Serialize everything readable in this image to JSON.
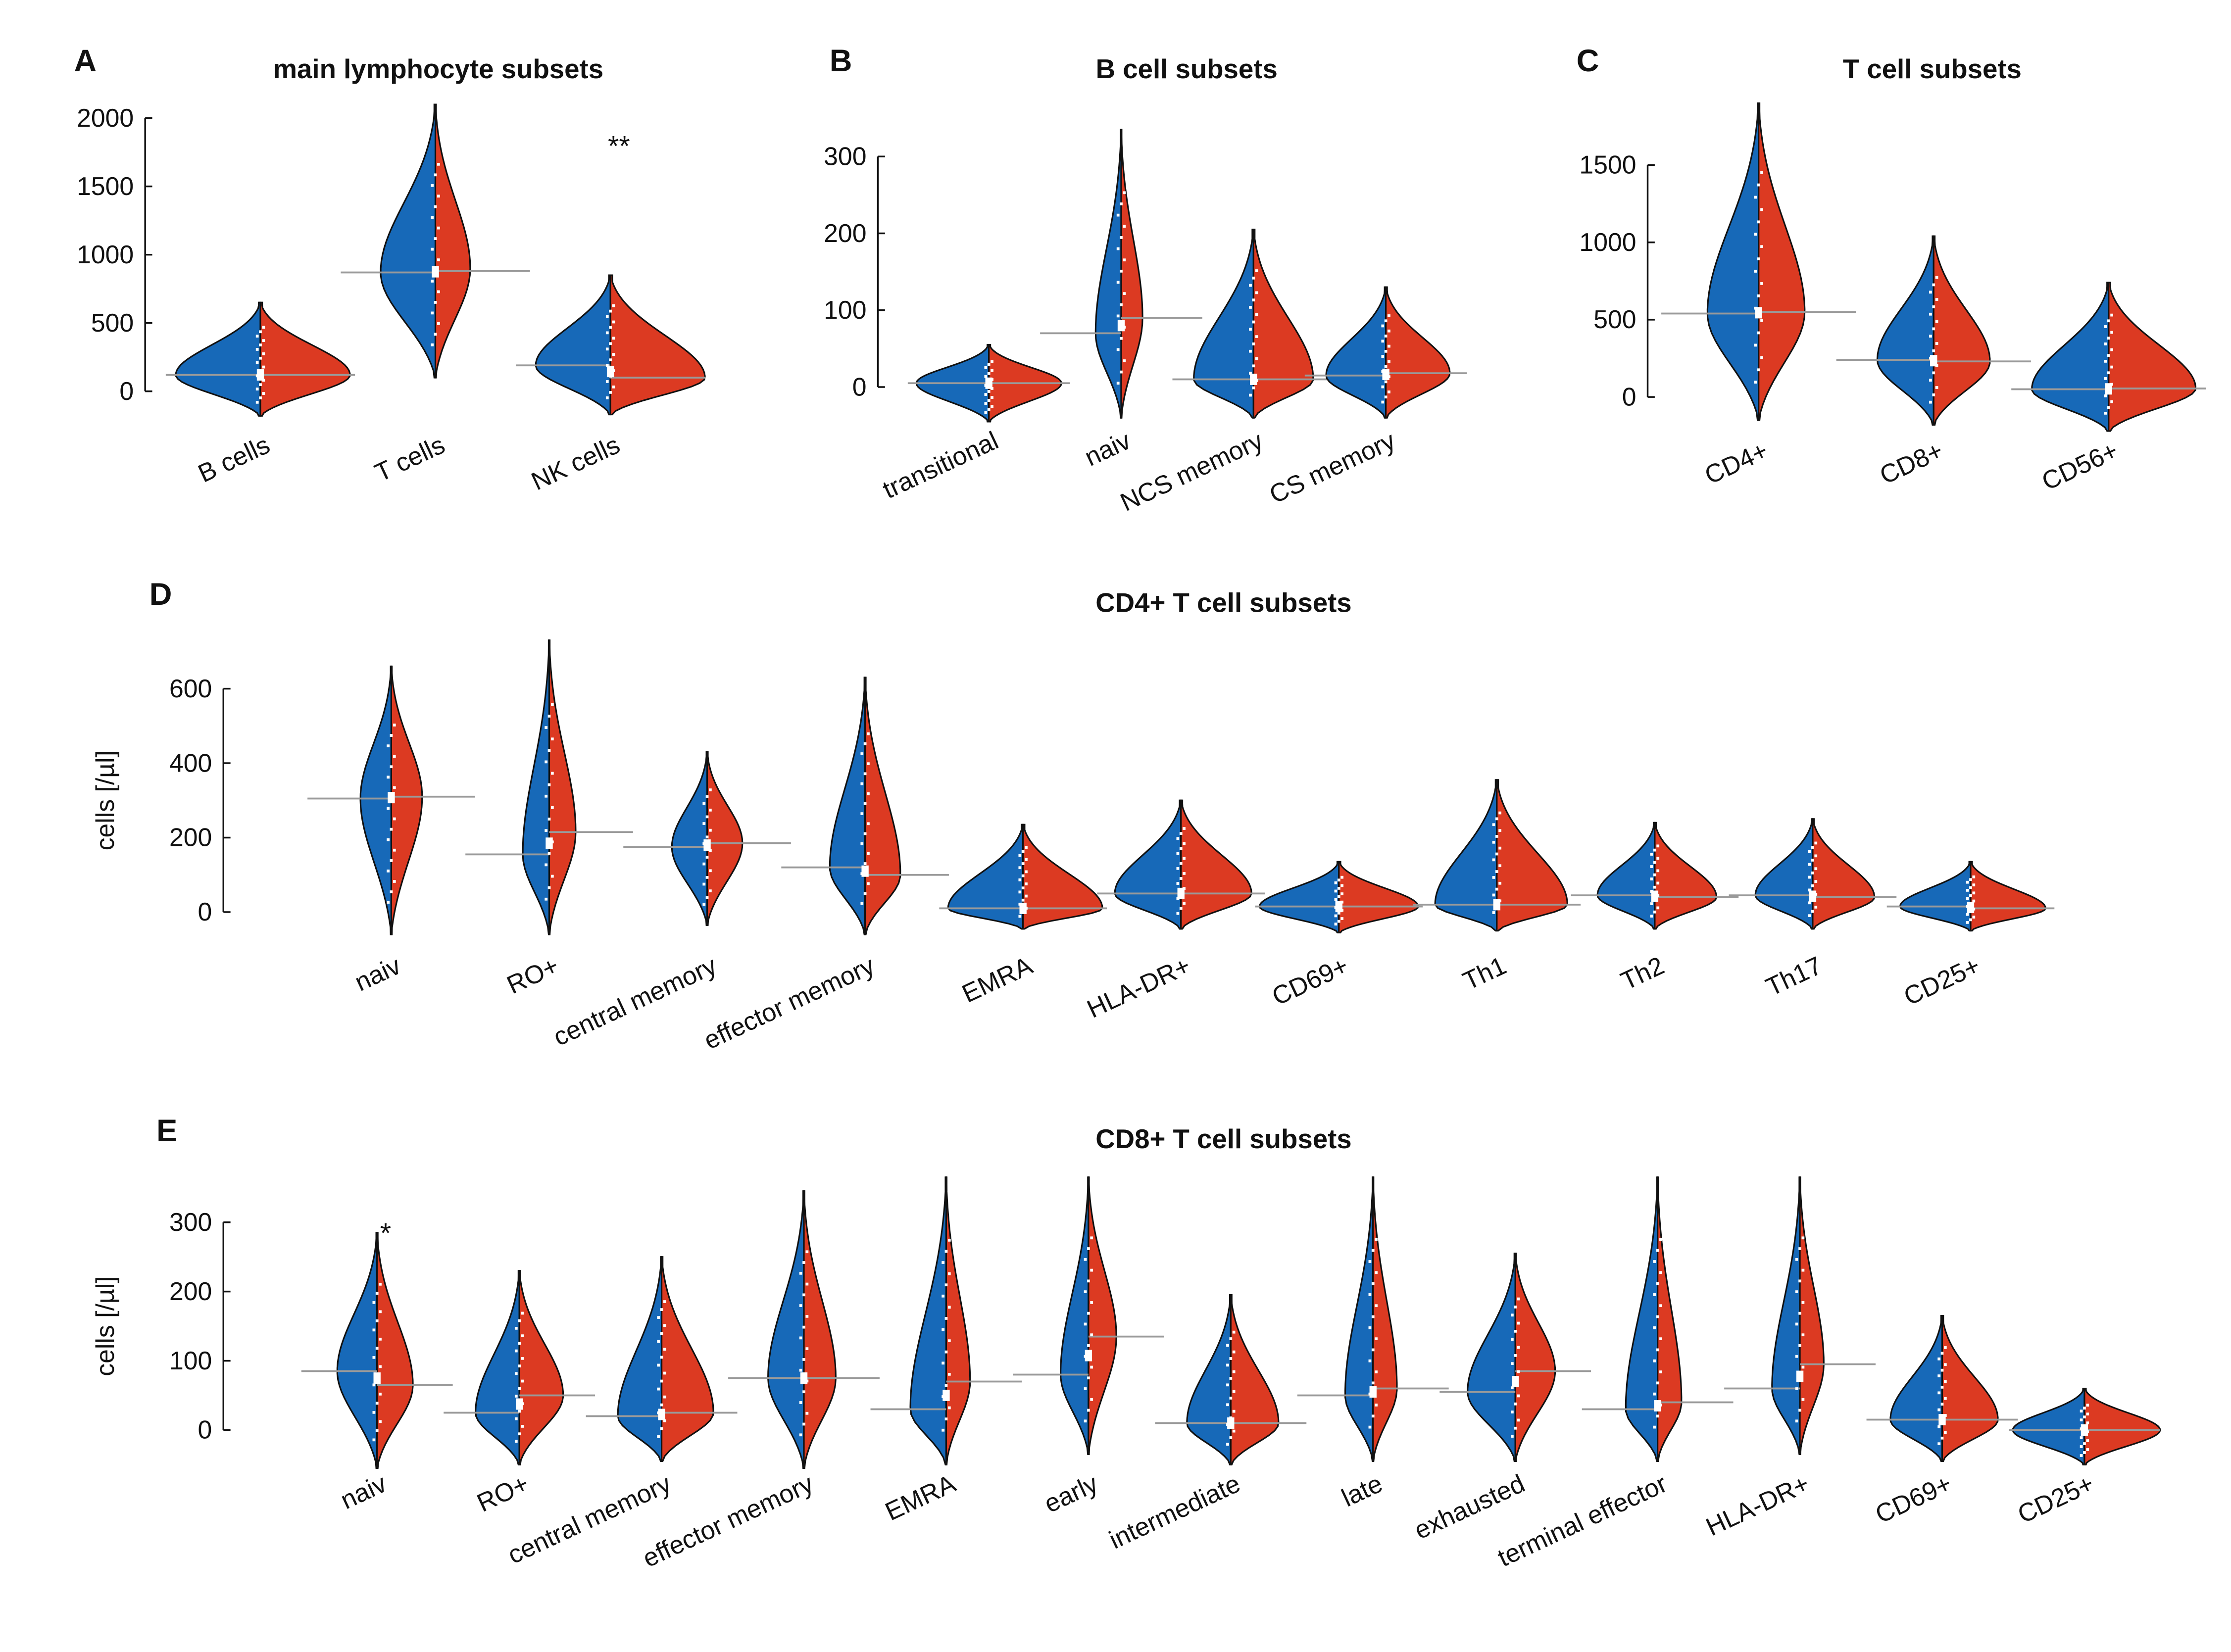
{
  "colors": {
    "left": "#1769b8",
    "right": "#dc3a22",
    "outline": "#111111",
    "median_line": "#9a9a9a"
  },
  "chart_data": [
    {
      "id": "A",
      "panel_label": "A",
      "type": "violin",
      "title": "main lymphocyte subsets",
      "ylabel": "",
      "ylim": [
        0,
        2000
      ],
      "yticks": [
        0,
        500,
        1000,
        1500,
        2000
      ],
      "categories": [
        "B cells",
        "T cells",
        "NK cells"
      ],
      "annotations": [
        {
          "category": "NK cells",
          "text": "**",
          "y": 1850
        }
      ],
      "violins": [
        {
          "min": -180,
          "max": 650,
          "left_median": 120,
          "right_median": 120,
          "left_mode": 120,
          "right_mode": 120,
          "left_width": 0.85,
          "right_width": 0.9
        },
        {
          "min": 100,
          "max": 2100,
          "left_median": 870,
          "right_median": 880,
          "left_mode": 870,
          "right_mode": 900,
          "left_width": 0.55,
          "right_width": 0.35
        },
        {
          "min": -170,
          "max": 850,
          "left_median": 190,
          "right_median": 100,
          "left_mode": 190,
          "right_mode": 100,
          "left_width": 0.75,
          "right_width": 0.95
        }
      ]
    },
    {
      "id": "B",
      "panel_label": "B",
      "type": "violin",
      "title": "B cell subsets",
      "ylabel": "",
      "ylim": [
        0,
        300
      ],
      "yticks": [
        0,
        100,
        200,
        300
      ],
      "categories": [
        "transitional",
        "naiv",
        "NCS memory",
        "CS memory"
      ],
      "violins": [
        {
          "min": -45,
          "max": 55,
          "left_median": 5,
          "right_median": 5,
          "left_mode": 5,
          "right_mode": 5,
          "left_width": 0.85,
          "right_width": 0.85
        },
        {
          "min": -40,
          "max": 335,
          "left_median": 70,
          "right_median": 90,
          "left_mode": 70,
          "right_mode": 90,
          "left_width": 0.3,
          "right_width": 0.25
        },
        {
          "min": -40,
          "max": 205,
          "left_median": 10,
          "right_median": 10,
          "left_mode": 10,
          "right_mode": 10,
          "left_width": 0.7,
          "right_width": 0.7
        },
        {
          "min": -40,
          "max": 130,
          "left_median": 15,
          "right_median": 18,
          "left_mode": 15,
          "right_mode": 18,
          "left_width": 0.7,
          "right_width": 0.75
        }
      ]
    },
    {
      "id": "C",
      "panel_label": "C",
      "type": "violin",
      "title": "T cell subsets",
      "ylabel": "",
      "ylim": [
        0,
        1500
      ],
      "yticks": [
        0,
        500,
        1000,
        1500
      ],
      "categories": [
        "CD4+",
        "CD8+",
        "CD56+"
      ],
      "violins": [
        {
          "min": -150,
          "max": 1900,
          "left_median": 540,
          "right_median": 550,
          "left_mode": 540,
          "right_mode": 550,
          "left_width": 0.5,
          "right_width": 0.45
        },
        {
          "min": -180,
          "max": 1040,
          "left_median": 240,
          "right_median": 230,
          "left_mode": 240,
          "right_mode": 230,
          "left_width": 0.55,
          "right_width": 0.55
        },
        {
          "min": -220,
          "max": 740,
          "left_median": 50,
          "right_median": 55,
          "left_mode": 50,
          "right_mode": 55,
          "left_width": 0.75,
          "right_width": 0.85
        }
      ]
    },
    {
      "id": "D",
      "panel_label": "D",
      "type": "violin",
      "title": "CD4+ T cell subsets",
      "ylabel": "cells [/µl]",
      "ylim": [
        0,
        600
      ],
      "yticks": [
        0,
        200,
        400,
        600
      ],
      "categories": [
        "naiv",
        "RO+",
        "central memory",
        "effector memory",
        "EMRA",
        "HLA-DR+",
        "CD69+",
        "Th1",
        "Th2",
        "Th17",
        "CD25+"
      ],
      "violins": [
        {
          "min": -60,
          "max": 660,
          "left_median": 305,
          "right_median": 310,
          "left_mode": 305,
          "right_mode": 310,
          "left_width": 0.35,
          "right_width": 0.35
        },
        {
          "min": -60,
          "max": 730,
          "left_median": 155,
          "right_median": 215,
          "left_mode": 155,
          "right_mode": 215,
          "left_width": 0.3,
          "right_width": 0.3
        },
        {
          "min": -35,
          "max": 430,
          "left_median": 175,
          "right_median": 185,
          "left_mode": 175,
          "right_mode": 185,
          "left_width": 0.4,
          "right_width": 0.4
        },
        {
          "min": -60,
          "max": 630,
          "left_median": 120,
          "right_median": 100,
          "left_mode": 120,
          "right_mode": 100,
          "left_width": 0.4,
          "right_width": 0.4
        },
        {
          "min": -45,
          "max": 235,
          "left_median": 10,
          "right_median": 10,
          "left_mode": 10,
          "right_mode": 10,
          "left_width": 0.85,
          "right_width": 0.9
        },
        {
          "min": -45,
          "max": 300,
          "left_median": 50,
          "right_median": 50,
          "left_mode": 50,
          "right_mode": 50,
          "left_width": 0.75,
          "right_width": 0.8
        },
        {
          "min": -55,
          "max": 135,
          "left_median": 15,
          "right_median": 15,
          "left_mode": 15,
          "right_mode": 15,
          "left_width": 0.9,
          "right_width": 0.9
        },
        {
          "min": -50,
          "max": 355,
          "left_median": 20,
          "right_median": 20,
          "left_mode": 20,
          "right_mode": 20,
          "left_width": 0.7,
          "right_width": 0.8
        },
        {
          "min": -45,
          "max": 240,
          "left_median": 45,
          "right_median": 40,
          "left_mode": 45,
          "right_mode": 40,
          "left_width": 0.65,
          "right_width": 0.7
        },
        {
          "min": -45,
          "max": 250,
          "left_median": 45,
          "right_median": 40,
          "left_mode": 45,
          "right_mode": 40,
          "left_width": 0.65,
          "right_width": 0.7
        },
        {
          "min": -50,
          "max": 135,
          "left_median": 15,
          "right_median": 10,
          "left_mode": 15,
          "right_mode": 10,
          "left_width": 0.8,
          "right_width": 0.85
        }
      ]
    },
    {
      "id": "E",
      "panel_label": "E",
      "type": "violin",
      "title": "CD8+ T cell subsets",
      "ylabel": "cells [/µl]",
      "ylim": [
        0,
        300
      ],
      "yticks": [
        0,
        100,
        200,
        300
      ],
      "categories": [
        "naiv",
        "RO+",
        "central memory",
        "effector memory",
        "EMRA",
        "early",
        "intermediate",
        "late",
        "exhausted",
        "terminal effector",
        "HLA-DR+",
        "CD69+",
        "CD25+"
      ],
      "annotations": [
        {
          "category": "naiv",
          "text": "*",
          "y": 295
        }
      ],
      "violins": [
        {
          "min": -55,
          "max": 285,
          "left_median": 85,
          "right_median": 65,
          "left_mode": 85,
          "right_mode": 65,
          "left_width": 0.5,
          "right_width": 0.45
        },
        {
          "min": -50,
          "max": 230,
          "left_median": 25,
          "right_median": 50,
          "left_mode": 25,
          "right_mode": 50,
          "left_width": 0.55,
          "right_width": 0.55
        },
        {
          "min": -45,
          "max": 250,
          "left_median": 20,
          "right_median": 25,
          "left_mode": 20,
          "right_mode": 25,
          "left_width": 0.55,
          "right_width": 0.65
        },
        {
          "min": -55,
          "max": 345,
          "left_median": 75,
          "right_median": 75,
          "left_mode": 75,
          "right_mode": 75,
          "left_width": 0.45,
          "right_width": 0.4
        },
        {
          "min": -50,
          "max": 365,
          "left_median": 30,
          "right_median": 70,
          "left_mode": 30,
          "right_mode": 70,
          "left_width": 0.45,
          "right_width": 0.3
        },
        {
          "min": -35,
          "max": 365,
          "left_median": 80,
          "right_median": 135,
          "left_mode": 80,
          "right_mode": 135,
          "left_width": 0.35,
          "right_width": 0.35
        },
        {
          "min": -50,
          "max": 195,
          "left_median": 10,
          "right_median": 10,
          "left_mode": 10,
          "right_mode": 10,
          "left_width": 0.55,
          "right_width": 0.6
        },
        {
          "min": -45,
          "max": 365,
          "left_median": 50,
          "right_median": 60,
          "left_mode": 50,
          "right_mode": 60,
          "left_width": 0.35,
          "right_width": 0.3
        },
        {
          "min": -45,
          "max": 255,
          "left_median": 55,
          "right_median": 85,
          "left_mode": 55,
          "right_mode": 85,
          "left_width": 0.6,
          "right_width": 0.5
        },
        {
          "min": -45,
          "max": 365,
          "left_median": 30,
          "right_median": 40,
          "left_mode": 30,
          "right_mode": 40,
          "left_width": 0.4,
          "right_width": 0.3
        },
        {
          "min": -35,
          "max": 365,
          "left_median": 60,
          "right_median": 95,
          "left_mode": 60,
          "right_mode": 95,
          "left_width": 0.35,
          "right_width": 0.3
        },
        {
          "min": -45,
          "max": 165,
          "left_median": 15,
          "right_median": 15,
          "left_mode": 15,
          "right_mode": 15,
          "left_width": 0.65,
          "right_width": 0.7
        },
        {
          "min": -50,
          "max": 60,
          "left_median": 0,
          "right_median": 0,
          "left_mode": 0,
          "right_mode": 0,
          "left_width": 0.9,
          "right_width": 0.95
        }
      ]
    }
  ]
}
